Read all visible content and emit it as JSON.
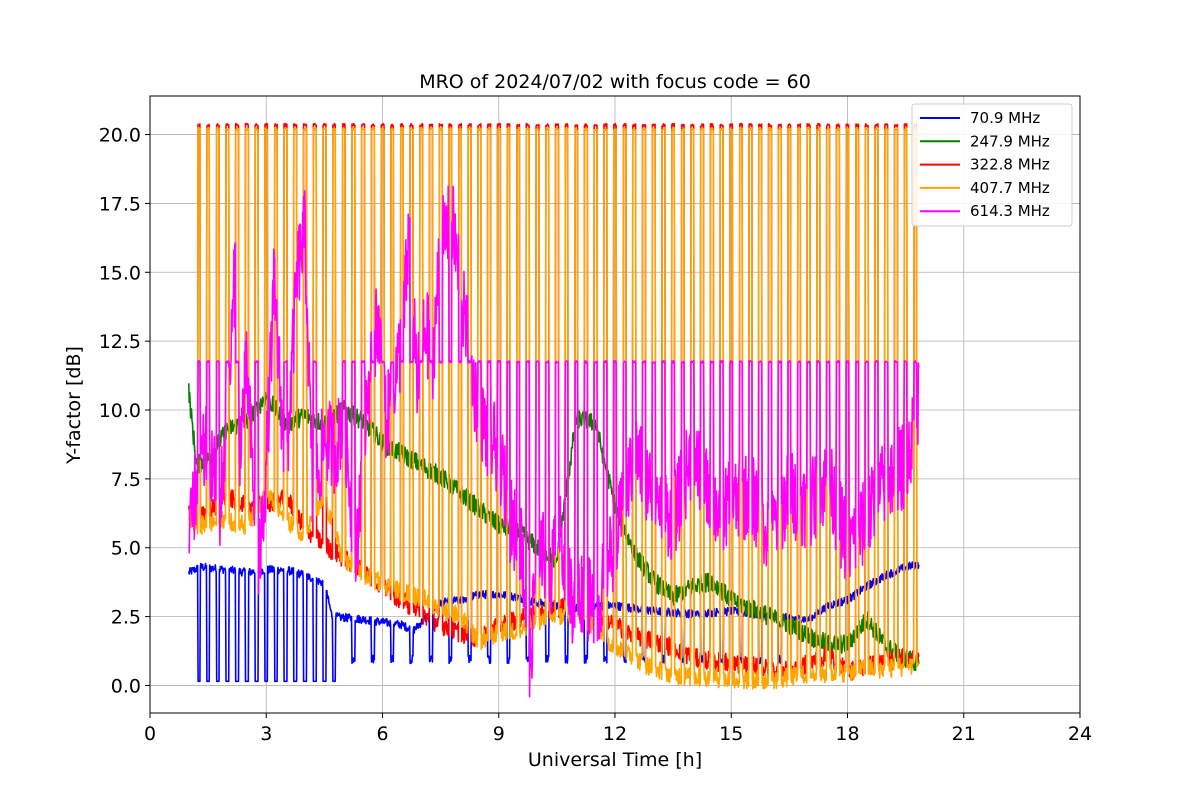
{
  "chart_data": {
    "type": "line",
    "title": "MRO of 2024/07/02 with focus code = 60",
    "xlabel": "Universal Time [h]",
    "ylabel": "Y-factor [dB]",
    "xlim": [
      0,
      24
    ],
    "ylim": [
      -1.0,
      21.4
    ],
    "xticks": [
      0,
      3,
      6,
      9,
      12,
      15,
      18,
      21,
      24
    ],
    "xtick_labels": [
      "0",
      "3",
      "6",
      "9",
      "12",
      "15",
      "18",
      "21",
      "24"
    ],
    "yticks": [
      0.0,
      2.5,
      5.0,
      7.5,
      10.0,
      12.5,
      15.0,
      17.5,
      20.0
    ],
    "ytick_labels": [
      "0.0",
      "2.5",
      "5.0",
      "7.5",
      "10.0",
      "12.5",
      "15.0",
      "17.5",
      "20.0"
    ],
    "grid": true,
    "legend_position": "top-right",
    "data_range_hours": [
      1.0,
      19.85
    ],
    "calibration_pulses": {
      "start_hour": 1.25,
      "end_hour": 19.8,
      "interval_hours": 0.25,
      "peak_db_322_407": 20.3,
      "peak_db_614": 11.75,
      "low_db_70": 0.15
    },
    "series": [
      {
        "name": " 70.9 MHz",
        "color": "#0000ff",
        "x": [
          1.0,
          1.3,
          2.0,
          2.5,
          3.0,
          3.5,
          4.0,
          4.5,
          4.7,
          5.5,
          6.0,
          6.5,
          6.8,
          7.5,
          8.0,
          8.5,
          9.0,
          9.5,
          10.0,
          10.5,
          11.0,
          11.5,
          12.0,
          12.5,
          13.0,
          14.0,
          15.0,
          16.0,
          17.0,
          17.5,
          18.0,
          18.5,
          19.0,
          19.5,
          19.85
        ],
        "y": [
          4.1,
          4.3,
          4.2,
          4.1,
          4.2,
          4.2,
          4.0,
          3.7,
          2.5,
          2.4,
          2.3,
          2.2,
          2.0,
          3.0,
          3.1,
          3.3,
          3.3,
          3.2,
          3.0,
          2.9,
          2.8,
          2.9,
          2.9,
          2.8,
          2.7,
          2.6,
          2.7,
          2.5,
          2.4,
          2.9,
          3.1,
          3.6,
          4.0,
          4.3,
          4.4
        ]
      },
      {
        "name": " 247.9 MHz",
        "color": "#008000",
        "x": [
          1.0,
          1.2,
          1.5,
          2.0,
          2.5,
          3.0,
          3.5,
          4.0,
          4.5,
          5.0,
          5.5,
          6.0,
          6.5,
          7.0,
          7.5,
          8.0,
          8.5,
          9.0,
          9.5,
          10.0,
          10.5,
          11.0,
          11.5,
          12.0,
          12.5,
          13.0,
          13.5,
          14.0,
          14.5,
          15.0,
          15.5,
          16.0,
          16.5,
          17.0,
          17.5,
          18.0,
          18.5,
          19.0,
          19.5,
          19.85
        ],
        "y": [
          10.7,
          8.0,
          8.2,
          9.3,
          9.6,
          10.5,
          9.5,
          9.8,
          9.5,
          10.0,
          9.6,
          8.8,
          8.4,
          8.0,
          7.6,
          7.0,
          6.4,
          5.8,
          5.6,
          5.0,
          4.5,
          9.7,
          9.5,
          6.5,
          4.8,
          3.8,
          3.2,
          3.6,
          3.8,
          3.1,
          2.8,
          2.5,
          2.2,
          1.8,
          1.5,
          1.5,
          2.4,
          1.4,
          1.0,
          0.8
        ]
      },
      {
        "name": " 322.8 MHz",
        "color": "#ff0000",
        "x": [
          1.0,
          1.2,
          1.5,
          2.0,
          2.5,
          3.0,
          3.5,
          4.0,
          4.5,
          5.0,
          5.5,
          6.0,
          6.5,
          7.0,
          7.5,
          8.0,
          8.5,
          9.0,
          9.5,
          10.0,
          10.5,
          11.0,
          11.5,
          12.0,
          12.5,
          13.0,
          13.5,
          14.0,
          14.5,
          15.0,
          15.5,
          16.0,
          16.5,
          17.0,
          17.5,
          18.0,
          18.5,
          19.0,
          19.5,
          19.85
        ],
        "y": [
          6.2,
          6.0,
          6.3,
          6.8,
          6.6,
          6.5,
          6.9,
          5.7,
          5.1,
          4.6,
          4.2,
          3.6,
          3.1,
          2.6,
          2.2,
          1.9,
          1.7,
          2.2,
          2.4,
          2.6,
          2.8,
          2.9,
          2.6,
          2.2,
          1.8,
          1.6,
          1.4,
          1.0,
          0.9,
          0.8,
          0.7,
          0.6,
          0.5,
          0.8,
          1.1,
          0.5,
          0.7,
          0.9,
          1.0,
          1.0
        ]
      },
      {
        "name": " 407.7 MHz",
        "color": "#ffa500",
        "x": [
          1.0,
          1.2,
          1.5,
          2.0,
          2.5,
          3.0,
          3.5,
          4.0,
          4.5,
          5.0,
          5.5,
          6.0,
          6.5,
          7.0,
          7.5,
          8.0,
          8.5,
          9.0,
          9.5,
          10.0,
          10.5,
          11.0,
          11.5,
          12.0,
          12.5,
          13.0,
          13.5,
          14.0,
          14.5,
          15.0,
          15.5,
          16.0,
          16.5,
          17.0,
          17.5,
          18.0,
          18.5,
          19.0,
          19.5,
          19.85
        ],
        "y": [
          6.1,
          5.8,
          5.9,
          6.0,
          5.8,
          7.0,
          6.0,
          5.5,
          6.8,
          4.5,
          4.0,
          3.7,
          3.4,
          3.2,
          2.8,
          2.5,
          1.6,
          1.9,
          2.0,
          2.3,
          2.5,
          2.6,
          2.1,
          1.4,
          1.0,
          0.6,
          0.4,
          0.3,
          0.3,
          0.2,
          0.2,
          0.2,
          0.3,
          0.4,
          0.4,
          0.5,
          0.6,
          0.6,
          0.7,
          0.8
        ]
      },
      {
        "name": " 614.3 MHz",
        "color": "#ff00ff",
        "x": [
          1.0,
          1.2,
          1.5,
          1.8,
          2.0,
          2.2,
          2.3,
          2.5,
          2.8,
          3.0,
          3.2,
          3.5,
          3.8,
          4.0,
          4.2,
          4.5,
          4.8,
          5.0,
          5.3,
          5.6,
          5.9,
          6.1,
          6.3,
          6.5,
          6.7,
          6.9,
          7.1,
          7.3,
          7.5,
          7.8,
          8.1,
          8.4,
          8.7,
          9.0,
          9.3,
          9.6,
          9.8,
          10.0,
          10.3,
          10.6,
          10.9,
          11.2,
          11.5,
          11.8,
          12.0,
          12.5,
          13.0,
          13.5,
          14.0,
          14.5,
          15.0,
          15.5,
          16.0,
          16.5,
          17.0,
          17.5,
          18.0,
          18.5,
          19.0,
          19.5,
          19.85
        ],
        "y": [
          4.8,
          7.5,
          8.8,
          6.5,
          9.5,
          15.3,
          8.5,
          11.5,
          4.0,
          8.0,
          14.5,
          7.5,
          15.0,
          16.5,
          6.5,
          9.0,
          8.5,
          10.0,
          4.5,
          10.5,
          13.5,
          9.5,
          11.0,
          12.5,
          16.7,
          11.0,
          13.0,
          12.0,
          16.0,
          16.9,
          13.5,
          10.5,
          9.0,
          8.5,
          6.0,
          5.0,
          0.3,
          5.5,
          4.0,
          5.5,
          3.0,
          3.5,
          2.5,
          4.5,
          5.0,
          8.5,
          7.0,
          6.0,
          8.5,
          6.5,
          6.5,
          7.0,
          5.5,
          7.0,
          6.5,
          7.5,
          5.0,
          6.0,
          7.5,
          8.0,
          10.3
        ]
      }
    ]
  }
}
